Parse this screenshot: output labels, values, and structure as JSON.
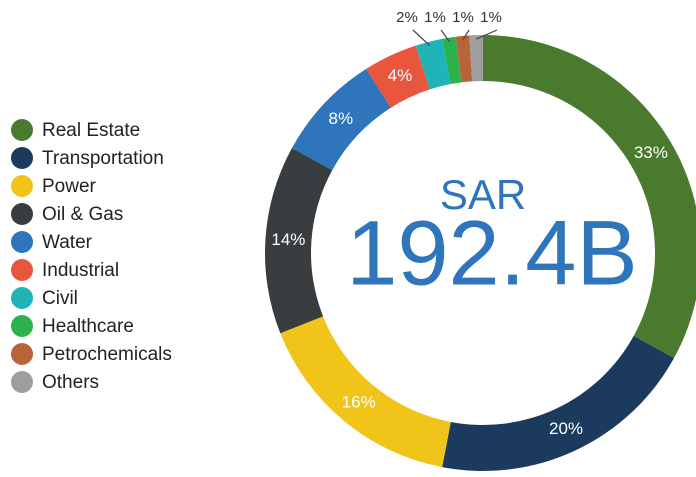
{
  "chart_data": {
    "type": "donut",
    "center_label": "SAR",
    "center_value": "192.4B",
    "categories": [
      "Real Estate",
      "Transportation",
      "Power",
      "Oil & Gas",
      "Water",
      "Industrial",
      "Civil",
      "Healthcare",
      "Petrochemicals",
      "Others"
    ],
    "values": [
      33,
      20,
      16,
      14,
      8,
      4,
      2,
      1,
      1,
      1
    ],
    "value_labels": [
      "33%",
      "20%",
      "16%",
      "14%",
      "8%",
      "4%",
      "2%",
      "1%",
      "1%",
      "1%"
    ],
    "colors": [
      "#4a7a2e",
      "#1c3a5e",
      "#f0c419",
      "#3a3d40",
      "#2f75bb",
      "#e8563d",
      "#1fb5b8",
      "#2bb24c",
      "#b8643a",
      "#9e9e9e"
    ],
    "center_color": "#2f75bb",
    "legend": "left"
  }
}
